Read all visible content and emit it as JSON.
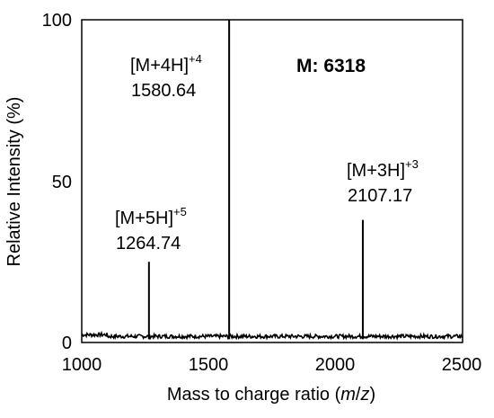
{
  "chart_data": {
    "type": "line",
    "title": "",
    "annotation": "M: 6318",
    "xlabel_prefix": "Mass to charge ratio (",
    "xlabel_italic": "m",
    "xlabel_mid": "/",
    "xlabel_italic2": "z",
    "xlabel_suffix": ")",
    "ylabel": "Relative Intensity  (%)",
    "xlim": [
      1000,
      2500
    ],
    "ylim": [
      0,
      100
    ],
    "xticks": [
      1000,
      1500,
      2000,
      2500
    ],
    "yticks": [
      0,
      50,
      100
    ],
    "grid": false,
    "peaks": [
      {
        "mz": 1264.74,
        "intensity": 25,
        "ion": "[M+5H]",
        "charge": "+5",
        "value_label": "1264.74"
      },
      {
        "mz": 1580.64,
        "intensity": 100,
        "ion": "[M+4H]",
        "charge": "+4",
        "value_label": "1580.64"
      },
      {
        "mz": 2107.17,
        "intensity": 38,
        "ion": "[M+3H]",
        "charge": "+3",
        "value_label": "2107.17"
      }
    ],
    "baseline_intensity": 1
  }
}
